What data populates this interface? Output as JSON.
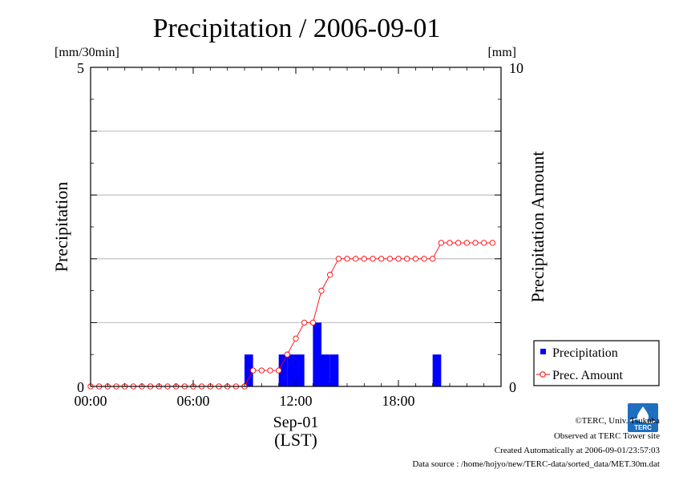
{
  "chart_data": {
    "type": "bar+line",
    "title": "Precipitation / 2006-09-01",
    "ylabel_left": "Precipitation",
    "ylabel_right": "Precipitation Amount",
    "unit_left": "[mm/30min]",
    "unit_right": "[mm]",
    "xlabel_date": "Sep-01",
    "xlabel_tz": "(LST)",
    "ylim_left": [
      0,
      5
    ],
    "ylim_right": [
      0,
      10
    ],
    "xlim_hours": [
      0,
      24
    ],
    "x_ticks": [
      {
        "hour": 0,
        "label": "00:00"
      },
      {
        "hour": 6,
        "label": "06:00"
      },
      {
        "hour": 12,
        "label": "12:00"
      },
      {
        "hour": 18,
        "label": "18:00"
      }
    ],
    "y_left_ticks": [
      {
        "value": 0,
        "label": "0"
      },
      {
        "value": 5,
        "label": "5"
      }
    ],
    "y_right_ticks": [
      {
        "value": 0,
        "label": "0"
      },
      {
        "value": 10,
        "label": "10"
      }
    ],
    "gridlines_left": [
      1,
      2,
      3,
      4
    ],
    "legend": {
      "position": "bottom-right",
      "items": [
        {
          "label": "Precipitation",
          "marker": "square",
          "color": "#0000ff"
        },
        {
          "label": "Prec. Amount",
          "marker": "circle-line",
          "color": "#ff0000"
        }
      ]
    },
    "bar_color": "#0000ff",
    "line_color": "#ff0000",
    "series": [
      {
        "name": "Precipitation",
        "axis": "left",
        "unit": "mm/30min",
        "x_hours": [
          9.0,
          11.0,
          11.5,
          12.0,
          13.0,
          13.5,
          14.0,
          20.0
        ],
        "values": [
          0.5,
          0.5,
          0.5,
          0.5,
          1.0,
          0.5,
          0.5,
          0.5
        ]
      },
      {
        "name": "Prec. Amount",
        "axis": "right",
        "unit": "mm",
        "x_hours": [
          0,
          0.5,
          1,
          1.5,
          2,
          2.5,
          3,
          3.5,
          4,
          4.5,
          5,
          5.5,
          6,
          6.5,
          7,
          7.5,
          8,
          8.5,
          9,
          9.5,
          10,
          10.5,
          11,
          11.5,
          12,
          12.5,
          13,
          13.5,
          14,
          14.5,
          15,
          15.5,
          16,
          16.5,
          17,
          17.5,
          18,
          18.5,
          19,
          19.5,
          20,
          20.5,
          21,
          21.5,
          22,
          22.5,
          23,
          23.5
        ],
        "values": [
          0,
          0,
          0,
          0,
          0,
          0,
          0,
          0,
          0,
          0,
          0,
          0,
          0,
          0,
          0,
          0,
          0,
          0,
          0,
          0.5,
          0.5,
          0.5,
          0.5,
          1.0,
          1.5,
          2.0,
          2.0,
          3.0,
          3.5,
          4.0,
          4.0,
          4.0,
          4.0,
          4.0,
          4.0,
          4.0,
          4.0,
          4.0,
          4.0,
          4.0,
          4.0,
          4.5,
          4.5,
          4.5,
          4.5,
          4.5,
          4.5,
          4.5
        ]
      }
    ]
  },
  "footer": {
    "copyright": "©TERC, Univ. Tsukuba",
    "observed": "Observed at TERC Tower site",
    "created": "Created Automatically at 2006-09-01/23:57:03",
    "source": "Data source : /home/hojyo/new/TERC-data/sorted_data/MET.30m.dat"
  },
  "logo": {
    "text": "TERC",
    "color": "#1e6fc0"
  }
}
